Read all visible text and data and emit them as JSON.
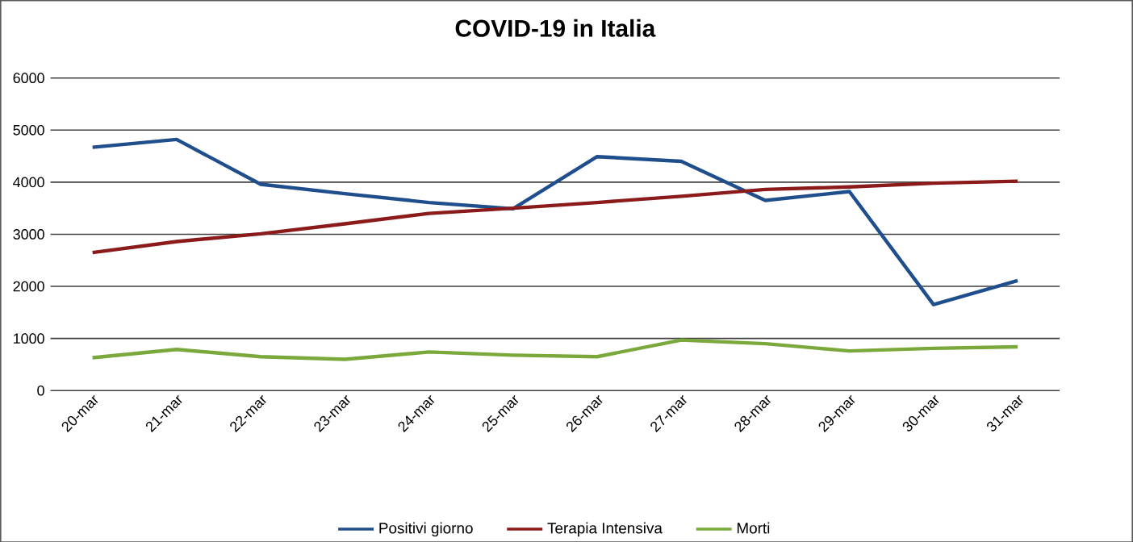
{
  "chart_data": {
    "type": "line",
    "title": "COVID-19 in Italia",
    "categories": [
      "20-mar",
      "21-mar",
      "22-mar",
      "23-mar",
      "24-mar",
      "25-mar",
      "26-mar",
      "27-mar",
      "28-mar",
      "29-mar",
      "30-mar",
      "31-mar"
    ],
    "series": [
      {
        "name": "Positivi giorno",
        "color": "#1f4e8c",
        "values": [
          4670,
          4820,
          3960,
          3780,
          3610,
          3490,
          4490,
          4400,
          3650,
          3820,
          1650,
          2110
        ]
      },
      {
        "name": "Terapia Intensiva",
        "color": "#8b1a1a",
        "values": [
          2650,
          2860,
          3010,
          3200,
          3400,
          3500,
          3610,
          3730,
          3860,
          3910,
          3980,
          4020
        ]
      },
      {
        "name": "Morti",
        "color": "#7aa83a",
        "values": [
          630,
          790,
          650,
          600,
          740,
          680,
          650,
          970,
          900,
          760,
          810,
          840
        ]
      }
    ],
    "ylim": [
      0,
      6000
    ],
    "yticks": [
      0,
      1000,
      2000,
      3000,
      4000,
      5000,
      6000
    ],
    "grid": "y",
    "legend": "bottom",
    "marker": "none",
    "line_style": "solid"
  }
}
